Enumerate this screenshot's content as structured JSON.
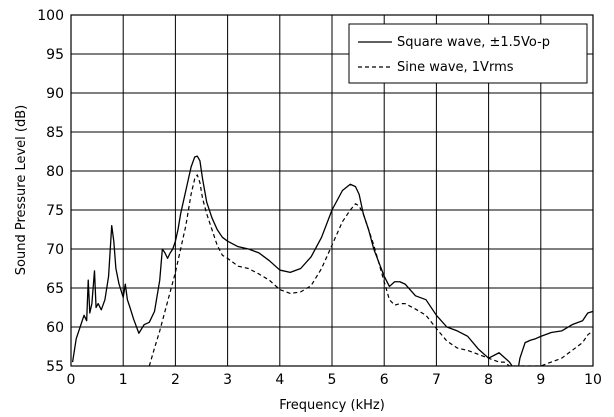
{
  "chart_data": {
    "type": "line",
    "xlabel": "Frequency (kHz)",
    "ylabel": "Sound Pressure Level (dB)",
    "xlim": [
      0,
      10
    ],
    "ylim": [
      55,
      100
    ],
    "xticks": [
      "0",
      "1",
      "2",
      "3",
      "4",
      "5",
      "6",
      "7",
      "8",
      "9",
      "10"
    ],
    "yticks": [
      "55",
      "60",
      "65",
      "70",
      "75",
      "80",
      "85",
      "90",
      "95",
      "100"
    ],
    "grid": true,
    "legend_position": "top-right",
    "series": [
      {
        "name": "Square wave, ±1.5Vo-p",
        "style": "solid",
        "color": "#000000",
        "x": [
          0.03,
          0.1,
          0.2,
          0.25,
          0.3,
          0.33,
          0.36,
          0.4,
          0.45,
          0.48,
          0.52,
          0.58,
          0.65,
          0.72,
          0.78,
          0.82,
          0.86,
          0.92,
          1.0,
          1.04,
          1.08,
          1.13,
          1.2,
          1.3,
          1.4,
          1.5,
          1.6,
          1.7,
          1.75,
          1.8,
          1.85,
          1.9,
          1.95,
          2.0,
          2.05,
          2.1,
          2.2,
          2.3,
          2.37,
          2.42,
          2.47,
          2.52,
          2.6,
          2.7,
          2.8,
          2.9,
          3.0,
          3.2,
          3.4,
          3.6,
          3.8,
          4.0,
          4.2,
          4.4,
          4.6,
          4.8,
          5.0,
          5.2,
          5.35,
          5.45,
          5.52,
          5.6,
          5.7,
          5.8,
          6.0,
          6.1,
          6.2,
          6.3,
          6.4,
          6.6,
          6.8,
          7.0,
          7.2,
          7.4,
          7.6,
          7.8,
          8.0,
          8.2,
          8.4,
          8.55,
          8.6,
          8.7,
          8.8,
          8.9,
          9.0,
          9.2,
          9.4,
          9.6,
          9.8,
          9.9,
          10.0
        ],
        "values": [
          55.5,
          58.5,
          60.5,
          61.5,
          60.8,
          66.0,
          61.8,
          63.0,
          67.2,
          62.5,
          63.0,
          62.2,
          63.5,
          66.5,
          73.0,
          71.0,
          67.5,
          65.5,
          63.8,
          65.5,
          63.5,
          62.5,
          61.0,
          59.2,
          60.3,
          60.6,
          62.0,
          66.0,
          70.0,
          69.5,
          68.8,
          69.5,
          70.0,
          71.0,
          72.5,
          74.5,
          77.5,
          80.5,
          81.8,
          81.9,
          81.3,
          79.0,
          76.0,
          74.0,
          72.5,
          71.5,
          71.0,
          70.3,
          70.0,
          69.5,
          68.5,
          67.3,
          67.0,
          67.5,
          69.0,
          71.5,
          75.0,
          77.5,
          78.3,
          78.0,
          77.0,
          74.5,
          72.5,
          70.0,
          66.5,
          65.2,
          65.8,
          65.8,
          65.5,
          64.0,
          63.5,
          61.5,
          60.0,
          59.5,
          58.8,
          57.2,
          56.0,
          56.7,
          55.5,
          54.0,
          56.0,
          58.0,
          58.3,
          58.5,
          58.8,
          59.3,
          59.5,
          60.3,
          60.8,
          61.8,
          62.0
        ]
      },
      {
        "name": "Sine wave, 1Vrms",
        "style": "dashed",
        "color": "#000000",
        "x": [
          1.5,
          1.6,
          1.7,
          1.8,
          1.9,
          2.0,
          2.1,
          2.2,
          2.3,
          2.37,
          2.42,
          2.47,
          2.52,
          2.6,
          2.7,
          2.8,
          2.9,
          3.0,
          3.2,
          3.4,
          3.6,
          3.8,
          4.0,
          4.2,
          4.4,
          4.6,
          4.8,
          5.0,
          5.2,
          5.35,
          5.45,
          5.52,
          5.6,
          5.7,
          5.8,
          6.0,
          6.1,
          6.2,
          6.3,
          6.4,
          6.6,
          6.8,
          7.0,
          7.2,
          7.4,
          7.6,
          7.8,
          8.0,
          8.2,
          8.3,
          8.4,
          9.0,
          9.2,
          9.4,
          9.6,
          9.8,
          9.9,
          10.0
        ],
        "values": [
          55.0,
          57.3,
          59.5,
          62.0,
          64.5,
          67.0,
          70.0,
          73.0,
          77.0,
          79.0,
          79.5,
          78.5,
          76.5,
          74.5,
          72.5,
          70.5,
          69.2,
          68.8,
          67.8,
          67.5,
          66.8,
          66.0,
          64.8,
          64.3,
          64.5,
          65.3,
          67.5,
          70.5,
          73.5,
          75.0,
          75.8,
          75.5,
          74.5,
          72.5,
          70.5,
          65.8,
          63.5,
          62.8,
          63.0,
          63.0,
          62.3,
          61.5,
          59.8,
          58.2,
          57.3,
          57.0,
          56.5,
          56.0,
          55.5,
          55.5,
          55.0,
          55.0,
          55.5,
          56.0,
          57.0,
          58.0,
          59.0,
          59.5
        ]
      }
    ]
  }
}
